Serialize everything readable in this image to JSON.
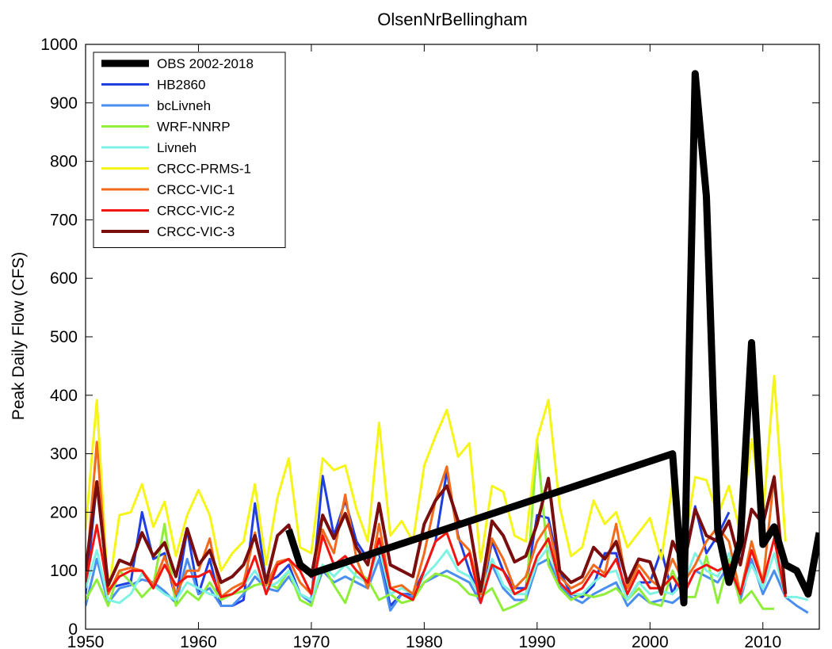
{
  "chart_data": {
    "type": "line",
    "title": "OlsenNrBellingham",
    "xlabel": "",
    "ylabel": "Peak Daily Flow (CFS)",
    "xlim": [
      1950,
      2015
    ],
    "ylim": [
      0,
      1000
    ],
    "xticks": [
      1950,
      1960,
      1970,
      1980,
      1990,
      2000,
      2010
    ],
    "yticks": [
      0,
      100,
      200,
      300,
      400,
      500,
      600,
      700,
      800,
      900,
      1000
    ],
    "grid": false,
    "legend_position": "top-left",
    "series": [
      {
        "name": "OBS 2002-2018",
        "color": "#000000",
        "width": 9,
        "x": [
          1968,
          1969,
          1970,
          2002,
          2003,
          2004,
          2005,
          2006,
          2007,
          2008,
          2009,
          2010,
          2011,
          2012,
          2013,
          2014,
          2015
        ],
        "y": [
          170,
          110,
          95,
          300,
          45,
          950,
          740,
          170,
          80,
          150,
          490,
          145,
          175,
          110,
          100,
          60,
          165
        ]
      },
      {
        "name": "HB2860",
        "color": "#1f3fe0",
        "width": 3,
        "x": [
          1950,
          1951,
          1952,
          1953,
          1954,
          1955,
          1956,
          1957,
          1958,
          1959,
          1960,
          1961,
          1962,
          1963,
          1964,
          1965,
          1966,
          1967,
          1968,
          1969,
          1970,
          1971,
          1972,
          1973,
          1974,
          1975,
          1976,
          1977,
          1978,
          1979,
          1980,
          1981,
          1982,
          1983,
          1984,
          1985,
          1986,
          1987,
          1988,
          1989,
          1990,
          1991,
          1992,
          1993,
          1994,
          1995,
          1996,
          1997,
          1998,
          1999,
          2000,
          2001,
          2002,
          2003,
          2004,
          2005,
          2006,
          2007
        ],
        "y": [
          60,
          250,
          70,
          75,
          80,
          200,
          120,
          130,
          50,
          170,
          60,
          120,
          40,
          40,
          50,
          215,
          80,
          90,
          110,
          60,
          50,
          262,
          160,
          220,
          150,
          120,
          130,
          40,
          60,
          60,
          100,
          150,
          270,
          160,
          100,
          50,
          150,
          100,
          70,
          70,
          195,
          190,
          100,
          60,
          55,
          75,
          130,
          130,
          50,
          80,
          80,
          135,
          60,
          110,
          210,
          130,
          160,
          200
        ]
      },
      {
        "name": "bcLivneh",
        "color": "#4a8ff0",
        "width": 3,
        "x": [
          1950,
          1951,
          1952,
          1953,
          1954,
          1955,
          1956,
          1957,
          1958,
          1959,
          1960,
          1961,
          1962,
          1963,
          1964,
          1965,
          1966,
          1967,
          1968,
          1969,
          1970,
          1971,
          1972,
          1973,
          1974,
          1975,
          1976,
          1977,
          1978,
          1979,
          1980,
          1981,
          1982,
          1983,
          1984,
          1985,
          1986,
          1987,
          1988,
          1989,
          1990,
          1991,
          1992,
          1993,
          1994,
          1995,
          1996,
          1997,
          1998,
          1999,
          2000,
          2001,
          2002,
          2003,
          2004,
          2005,
          2006,
          2007,
          2008,
          2009,
          2010,
          2011,
          2012,
          2013,
          2014
        ],
        "y": [
          40,
          120,
          45,
          70,
          75,
          85,
          80,
          65,
          45,
          120,
          60,
          70,
          40,
          40,
          60,
          90,
          70,
          65,
          90,
          60,
          45,
          100,
          80,
          90,
          80,
          70,
          120,
          32,
          60,
          55,
          80,
          90,
          100,
          90,
          80,
          45,
          110,
          70,
          50,
          50,
          110,
          120,
          75,
          55,
          45,
          60,
          70,
          80,
          40,
          60,
          45,
          50,
          45,
          60,
          100,
          90,
          80,
          110,
          50,
          120,
          60,
          100,
          55,
          40,
          28
        ]
      },
      {
        "name": "WRF-NNRP",
        "color": "#8fee3c",
        "width": 3,
        "x": [
          1950,
          1951,
          1952,
          1953,
          1954,
          1955,
          1956,
          1957,
          1958,
          1959,
          1960,
          1961,
          1962,
          1963,
          1964,
          1965,
          1966,
          1967,
          1968,
          1969,
          1970,
          1971,
          1972,
          1973,
          1974,
          1975,
          1976,
          1977,
          1978,
          1979,
          1980,
          1981,
          1982,
          1983,
          1984,
          1985,
          1986,
          1987,
          1988,
          1989,
          1990,
          1991,
          1992,
          1993,
          1994,
          1995,
          1996,
          1997,
          1998,
          1999,
          2000,
          2001,
          2002,
          2003,
          2004,
          2005,
          2006,
          2007,
          2008,
          2009,
          2010,
          2011
        ],
        "y": [
          50,
          85,
          40,
          100,
          80,
          55,
          75,
          180,
          40,
          65,
          50,
          80,
          50,
          60,
          65,
          75,
          80,
          70,
          100,
          50,
          40,
          110,
          75,
          45,
          100,
          85,
          50,
          60,
          45,
          50,
          80,
          95,
          90,
          80,
          60,
          55,
          70,
          32,
          40,
          50,
          318,
          110,
          70,
          50,
          60,
          55,
          60,
          70,
          50,
          70,
          45,
          40,
          100,
          55,
          55,
          125,
          45,
          120,
          45,
          65,
          35,
          35
        ]
      },
      {
        "name": "Livneh",
        "color": "#7ff3e3",
        "width": 3,
        "x": [
          1950,
          1951,
          1952,
          1953,
          1954,
          1955,
          1956,
          1957,
          1958,
          1959,
          1960,
          1961,
          1962,
          1963,
          1964,
          1965,
          1966,
          1967,
          1968,
          1969,
          1970,
          1971,
          1972,
          1973,
          1974,
          1975,
          1976,
          1977,
          1978,
          1979,
          1980,
          1981,
          1982,
          1983,
          1984,
          1985,
          1986,
          1987,
          1988,
          1989,
          1990,
          1991,
          1992,
          1993,
          1994,
          1995,
          1996,
          1997,
          1998,
          1999,
          2000,
          2001,
          2002,
          2003,
          2004,
          2005,
          2006,
          2007,
          2008,
          2009,
          2010,
          2011,
          2012,
          2013,
          2014
        ],
        "y": [
          70,
          135,
          50,
          45,
          60,
          95,
          75,
          60,
          50,
          80,
          70,
          60,
          55,
          60,
          75,
          100,
          70,
          80,
          100,
          60,
          50,
          110,
          90,
          110,
          90,
          80,
          140,
          60,
          70,
          60,
          90,
          110,
          135,
          100,
          90,
          55,
          120,
          75,
          60,
          60,
          115,
          140,
          80,
          60,
          60,
          80,
          95,
          100,
          50,
          80,
          60,
          65,
          60,
          80,
          130,
          100,
          90,
          130,
          60,
          110,
          70,
          130,
          55,
          55,
          50
        ]
      },
      {
        "name": "CRCC-PRMS-1",
        "color": "#f5f51a",
        "width": 3,
        "x": [
          1950,
          1951,
          1952,
          1953,
          1954,
          1955,
          1956,
          1957,
          1958,
          1959,
          1960,
          1961,
          1962,
          1963,
          1964,
          1965,
          1966,
          1967,
          1968,
          1969,
          1970,
          1971,
          1972,
          1973,
          1974,
          1975,
          1976,
          1977,
          1978,
          1979,
          1980,
          1981,
          1982,
          1983,
          1984,
          1985,
          1986,
          1987,
          1988,
          1989,
          1990,
          1991,
          1992,
          1993,
          1994,
          1995,
          1996,
          1997,
          1998,
          1999,
          2000,
          2001,
          2002,
          2003,
          2004,
          2005,
          2006,
          2007,
          2008,
          2009,
          2010,
          2011,
          2012
        ],
        "y": [
          170,
          392,
          60,
          195,
          200,
          248,
          175,
          218,
          125,
          195,
          238,
          195,
          100,
          130,
          150,
          248,
          110,
          225,
          292,
          140,
          130,
          292,
          272,
          280,
          205,
          150,
          353,
          160,
          185,
          150,
          280,
          330,
          375,
          295,
          318,
          115,
          245,
          235,
          160,
          150,
          325,
          392,
          210,
          125,
          140,
          220,
          180,
          200,
          140,
          165,
          190,
          120,
          248,
          140,
          260,
          255,
          195,
          245,
          165,
          325,
          190,
          433,
          150
        ]
      },
      {
        "name": "CRCC-VIC-1",
        "color": "#f26a1b",
        "width": 3,
        "x": [
          1950,
          1951,
          1952,
          1953,
          1954,
          1955,
          1956,
          1957,
          1958,
          1959,
          1960,
          1961,
          1962,
          1963,
          1964,
          1965,
          1966,
          1967,
          1968,
          1969,
          1970,
          1971,
          1972,
          1973,
          1974,
          1975,
          1976,
          1977,
          1978,
          1979,
          1980,
          1981,
          1982,
          1983,
          1984,
          1985,
          1986,
          1987,
          1988,
          1989,
          1990,
          1991,
          1992,
          1993,
          1994,
          1995,
          1996,
          1997,
          1998,
          1999,
          2000,
          2001,
          2002,
          2003,
          2004,
          2005,
          2006,
          2007,
          2008,
          2009,
          2010,
          2011,
          2012
        ],
        "y": [
          80,
          320,
          60,
          100,
          105,
          100,
          75,
          125,
          60,
          100,
          100,
          155,
          55,
          70,
          80,
          165,
          75,
          115,
          120,
          80,
          60,
          170,
          130,
          230,
          120,
          70,
          180,
          70,
          75,
          60,
          130,
          220,
          278,
          155,
          135,
          60,
          155,
          120,
          70,
          90,
          150,
          180,
          90,
          70,
          80,
          110,
          95,
          180,
          70,
          110,
          85,
          70,
          120,
          80,
          110,
          150,
          175,
          150,
          60,
          150,
          80,
          262,
          55
        ]
      },
      {
        "name": "CRCC-VIC-2",
        "color": "#f2140f",
        "width": 3,
        "x": [
          1950,
          1951,
          1952,
          1953,
          1954,
          1955,
          1956,
          1957,
          1958,
          1959,
          1960,
          1961,
          1962,
          1963,
          1964,
          1965,
          1966,
          1967,
          1968,
          1969,
          1970,
          1971,
          1972,
          1973,
          1974,
          1975,
          1976,
          1977,
          1978,
          1979,
          1980,
          1981,
          1982,
          1983,
          1984,
          1985,
          1986,
          1987,
          1988,
          1989,
          1990,
          1991,
          1992,
          1993,
          1994,
          1995,
          1996,
          1997,
          1998,
          1999,
          2000,
          2001,
          2002,
          2003,
          2004,
          2005,
          2006,
          2007,
          2008,
          2009,
          2010,
          2011,
          2012
        ],
        "y": [
          80,
          178,
          65,
          90,
          100,
          100,
          70,
          110,
          75,
          90,
          90,
          100,
          55,
          60,
          75,
          125,
          60,
          110,
          120,
          100,
          60,
          160,
          110,
          125,
          100,
          80,
          155,
          70,
          60,
          50,
          100,
          150,
          165,
          110,
          130,
          45,
          110,
          100,
          60,
          70,
          125,
          155,
          80,
          60,
          70,
          100,
          90,
          120,
          60,
          100,
          70,
          70,
          90,
          60,
          100,
          110,
          100,
          110,
          60,
          135,
          80,
          155,
          55
        ]
      },
      {
        "name": "CRCC-VIC-3",
        "color": "#7a0e0e",
        "width": 4,
        "x": [
          1950,
          1951,
          1952,
          1953,
          1954,
          1955,
          1956,
          1957,
          1958,
          1959,
          1960,
          1961,
          1962,
          1963,
          1964,
          1965,
          1966,
          1967,
          1968,
          1969,
          1970,
          1971,
          1972,
          1973,
          1974,
          1975,
          1976,
          1977,
          1978,
          1979,
          1980,
          1981,
          1982,
          1983,
          1984,
          1985,
          1986,
          1987,
          1988,
          1989,
          1990,
          1991,
          1992,
          1993,
          1994,
          1995,
          1996,
          1997,
          1998,
          1999,
          2000,
          2001,
          2002,
          2003,
          2004,
          2005,
          2006,
          2007,
          2008,
          2009,
          2010,
          2011,
          2012
        ],
        "y": [
          100,
          252,
          75,
          118,
          110,
          165,
          125,
          148,
          90,
          172,
          110,
          135,
          80,
          90,
          110,
          160,
          80,
          160,
          178,
          110,
          90,
          195,
          155,
          198,
          140,
          110,
          215,
          110,
          100,
          90,
          180,
          220,
          245,
          185,
          180,
          65,
          185,
          160,
          115,
          125,
          180,
          258,
          100,
          80,
          90,
          140,
          120,
          150,
          80,
          120,
          115,
          60,
          150,
          110,
          205,
          160,
          150,
          185,
          110,
          205,
          180,
          260,
          60
        ]
      }
    ]
  }
}
